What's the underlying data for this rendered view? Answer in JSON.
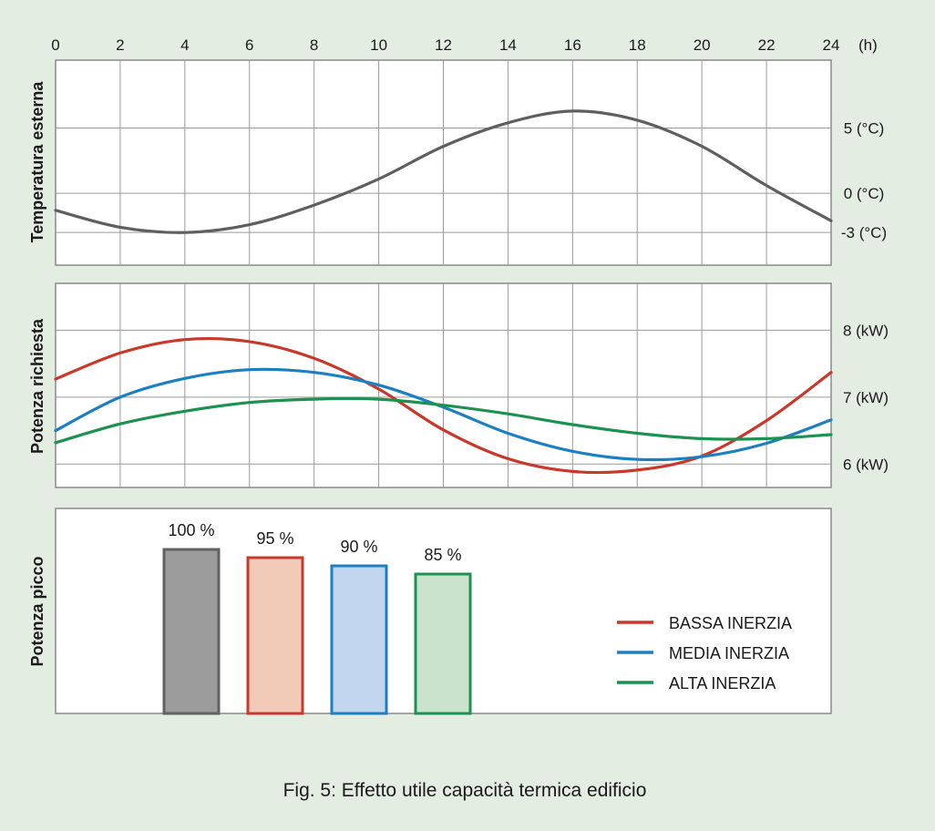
{
  "chart_data": [
    {
      "type": "line",
      "ylabel": "Temperatura esterna",
      "x_unit": "(h)",
      "xlim": [
        0,
        24
      ],
      "x_ticks": [
        "0",
        "2",
        "4",
        "6",
        "8",
        "10",
        "12",
        "14",
        "16",
        "18",
        "20",
        "22",
        "24"
      ],
      "ylim": [
        -5.5,
        10.2
      ],
      "y_ticks": [
        {
          "value": 5,
          "label": "5 (°C)"
        },
        {
          "value": 0,
          "label": "0 (°C)"
        },
        {
          "value": -3,
          "label": "-3 (°C)"
        }
      ],
      "series": [
        {
          "name": "Temperatura esterna",
          "color": "#5f5f5f",
          "x": [
            0,
            2,
            4,
            6,
            8,
            10,
            12,
            14,
            16,
            18,
            20,
            22,
            24
          ],
          "values": [
            -1.3,
            -2.6,
            -3.0,
            -2.4,
            -0.9,
            1.1,
            3.6,
            5.4,
            6.3,
            5.6,
            3.6,
            0.6,
            -2.1
          ]
        }
      ]
    },
    {
      "type": "line",
      "ylabel": "Potenza richiesta",
      "xlim": [
        0,
        24
      ],
      "ylim": [
        5.65,
        8.7
      ],
      "y_ticks": [
        {
          "value": 8,
          "label": "8 (kW)"
        },
        {
          "value": 7,
          "label": "7 (kW)"
        },
        {
          "value": 6,
          "label": "6 (kW)"
        }
      ],
      "series": [
        {
          "name": "BASSA INERZIA",
          "color": "#c8392b",
          "x": [
            0,
            2,
            4,
            6,
            8,
            10,
            12,
            14,
            16,
            18,
            20,
            22,
            24
          ],
          "values": [
            7.27,
            7.66,
            7.86,
            7.83,
            7.58,
            7.12,
            6.51,
            6.08,
            5.89,
            5.91,
            6.12,
            6.65,
            7.37
          ]
        },
        {
          "name": "MEDIA INERZIA",
          "color": "#1b7fc0",
          "x": [
            0,
            2,
            4,
            6,
            8,
            10,
            12,
            14,
            16,
            18,
            20,
            22,
            24
          ],
          "values": [
            6.5,
            7.0,
            7.28,
            7.41,
            7.37,
            7.18,
            6.85,
            6.46,
            6.19,
            6.07,
            6.11,
            6.31,
            6.66
          ]
        },
        {
          "name": "ALTA INERZIA",
          "color": "#1d9150",
          "x": [
            0,
            2,
            4,
            6,
            8,
            10,
            12,
            14,
            16,
            18,
            20,
            22,
            24
          ],
          "values": [
            6.32,
            6.6,
            6.79,
            6.92,
            6.97,
            6.97,
            6.88,
            6.75,
            6.59,
            6.46,
            6.38,
            6.38,
            6.44
          ]
        }
      ]
    },
    {
      "type": "bar",
      "ylabel": "Potenza picco",
      "ylim": [
        0,
        125
      ],
      "categories": [
        "",
        "BASSA INERZIA",
        "MEDIA INERZIA",
        "ALTA INERZIA"
      ],
      "values": [
        100,
        95,
        90,
        85
      ],
      "labels": [
        "100 %",
        "95 %",
        "90 %",
        "85 %"
      ],
      "stroke_colors": [
        "#616161",
        "#c8392b",
        "#1b7fc0",
        "#1d9150"
      ],
      "fill_colors": [
        "#9c9c9c",
        "#f2cab8",
        "#c2d7ef",
        "#c9e3cc"
      ]
    }
  ],
  "legend": {
    "items": [
      {
        "label": "BASSA INERZIA",
        "color": "#c8392b"
      },
      {
        "label": "MEDIA INERZIA",
        "color": "#1b7fc0"
      },
      {
        "label": "ALTA INERZIA",
        "color": "#1d9150"
      }
    ]
  },
  "caption": "Fig. 5: Effetto utile capacità termica edificio"
}
